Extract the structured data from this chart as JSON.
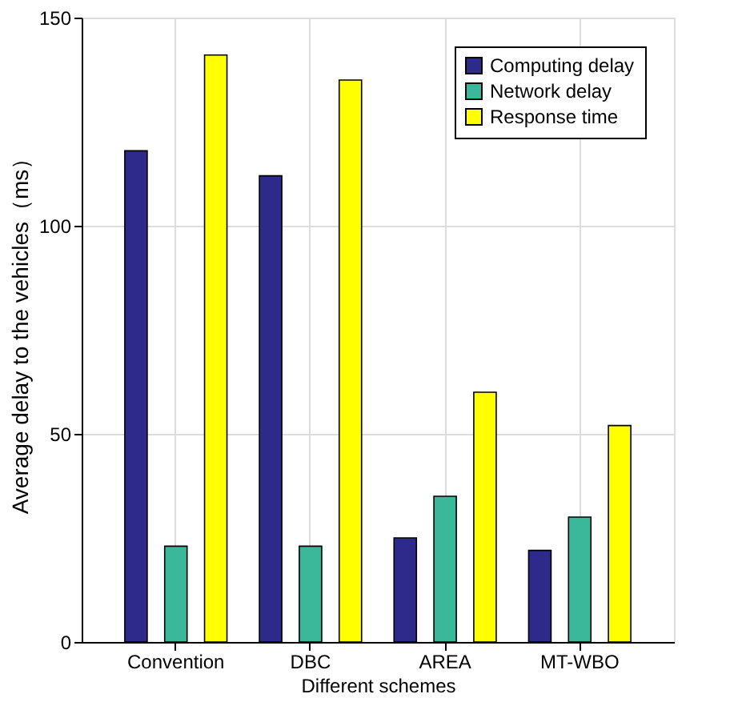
{
  "chart_data": {
    "type": "bar",
    "xlabel": "Different schemes",
    "ylabel": "Average delay to the vehicles（ms）",
    "categories": [
      "Convention",
      "DBC",
      "AREA",
      "MT-WBO"
    ],
    "series": [
      {
        "name": "Computing delay",
        "color": "#2e2a8c",
        "values": [
          118,
          112,
          25,
          22
        ]
      },
      {
        "name": "Network delay",
        "color": "#3bb89a",
        "values": [
          23,
          23,
          35,
          30
        ]
      },
      {
        "name": "Response time",
        "color": "#ffff00",
        "values": [
          141,
          135,
          60,
          52
        ]
      }
    ],
    "ylim": [
      0,
      150
    ],
    "yticks": [
      0,
      50,
      100,
      150
    ],
    "grid": true,
    "legend": "top right"
  }
}
